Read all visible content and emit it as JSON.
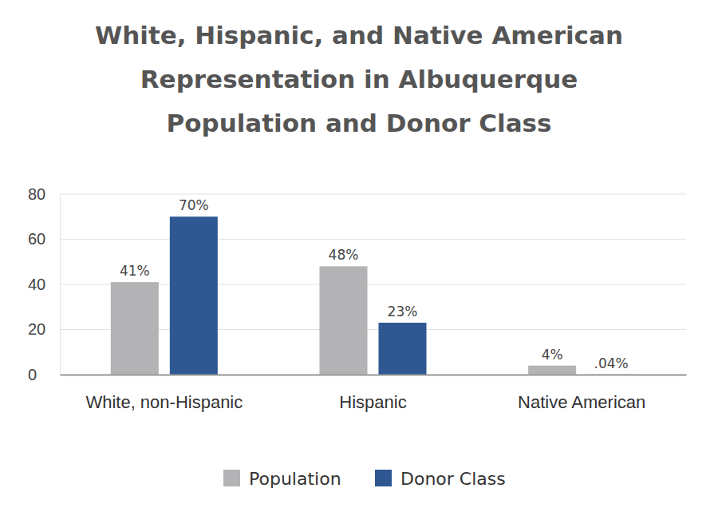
{
  "chart_data": {
    "type": "bar",
    "title": "White, Hispanic, and Native American\nRepresentation in Albuquerque\nPopulation and Donor Class",
    "categories": [
      "White, non-Hispanic",
      "Hispanic",
      "Native American"
    ],
    "series": [
      {
        "name": "Population",
        "color": "#b3b3b6",
        "values": [
          41,
          48,
          4
        ],
        "value_labels": [
          "41%",
          "48%",
          "4%"
        ]
      },
      {
        "name": "Donor Class",
        "color": "#2f5791",
        "values": [
          70,
          23,
          0.04
        ],
        "value_labels": [
          "70%",
          "23%",
          ".04%"
        ]
      }
    ],
    "ylim": [
      0,
      80
    ],
    "yticks": [
      0,
      20,
      40,
      60,
      80
    ],
    "grid": true,
    "data_labels": true,
    "legend": "bottom"
  }
}
